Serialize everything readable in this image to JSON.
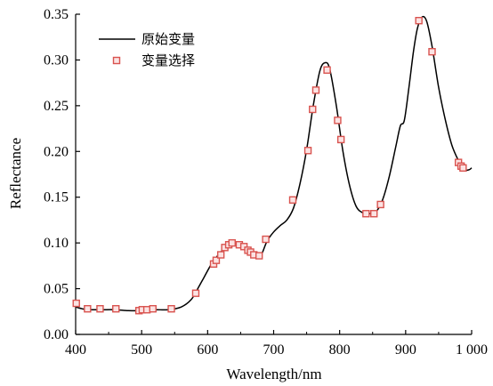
{
  "chart_data": {
    "type": "line",
    "xlabel": "Wavelength/nm",
    "ylabel": "Reflectance",
    "xlim": [
      400,
      1000
    ],
    "ylim": [
      0,
      0.35
    ],
    "x_ticks": [
      400,
      500,
      600,
      700,
      800,
      900,
      1000
    ],
    "x_tick_labels": [
      "400",
      "500",
      "600",
      "700",
      "800",
      "900",
      "1 000"
    ],
    "y_ticks": [
      0,
      0.05,
      0.1,
      0.15,
      0.2,
      0.25,
      0.3,
      0.35
    ],
    "y_tick_labels": [
      "0.00",
      "0.05",
      "0.10",
      "0.15",
      "0.20",
      "0.25",
      "0.30",
      "0.35"
    ],
    "grid": false,
    "legend_position": "top-left",
    "series": [
      {
        "name": "原始变量",
        "style": "line",
        "color": "#000000",
        "points": [
          [
            400,
            0.03
          ],
          [
            410,
            0.028
          ],
          [
            420,
            0.027
          ],
          [
            440,
            0.027
          ],
          [
            460,
            0.027
          ],
          [
            480,
            0.026
          ],
          [
            500,
            0.026
          ],
          [
            520,
            0.027
          ],
          [
            540,
            0.027
          ],
          [
            560,
            0.03
          ],
          [
            575,
            0.038
          ],
          [
            585,
            0.05
          ],
          [
            595,
            0.063
          ],
          [
            605,
            0.076
          ],
          [
            615,
            0.086
          ],
          [
            625,
            0.094
          ],
          [
            635,
            0.099
          ],
          [
            645,
            0.099
          ],
          [
            655,
            0.095
          ],
          [
            665,
            0.089
          ],
          [
            675,
            0.084
          ],
          [
            682,
            0.088
          ],
          [
            690,
            0.102
          ],
          [
            700,
            0.112
          ],
          [
            710,
            0.119
          ],
          [
            720,
            0.125
          ],
          [
            730,
            0.138
          ],
          [
            740,
            0.165
          ],
          [
            750,
            0.202
          ],
          [
            760,
            0.25
          ],
          [
            770,
            0.288
          ],
          [
            778,
            0.297
          ],
          [
            785,
            0.29
          ],
          [
            795,
            0.25
          ],
          [
            805,
            0.2
          ],
          [
            815,
            0.163
          ],
          [
            825,
            0.14
          ],
          [
            835,
            0.133
          ],
          [
            845,
            0.132
          ],
          [
            855,
            0.134
          ],
          [
            865,
            0.147
          ],
          [
            875,
            0.172
          ],
          [
            885,
            0.205
          ],
          [
            892,
            0.228
          ],
          [
            898,
            0.234
          ],
          [
            905,
            0.27
          ],
          [
            912,
            0.31
          ],
          [
            918,
            0.335
          ],
          [
            925,
            0.347
          ],
          [
            932,
            0.342
          ],
          [
            940,
            0.315
          ],
          [
            950,
            0.27
          ],
          [
            960,
            0.235
          ],
          [
            970,
            0.207
          ],
          [
            980,
            0.19
          ],
          [
            988,
            0.18
          ],
          [
            996,
            0.18
          ],
          [
            1000,
            0.182
          ]
        ]
      },
      {
        "name": "变量选择",
        "style": "marker",
        "color": "#d9534f",
        "points": [
          [
            401,
            0.034
          ],
          [
            418,
            0.028
          ],
          [
            437,
            0.028
          ],
          [
            461,
            0.028
          ],
          [
            496,
            0.026
          ],
          [
            501,
            0.027
          ],
          [
            508,
            0.027
          ],
          [
            517,
            0.028
          ],
          [
            545,
            0.028
          ],
          [
            582,
            0.045
          ],
          [
            609,
            0.077
          ],
          [
            613,
            0.081
          ],
          [
            620,
            0.087
          ],
          [
            626,
            0.095
          ],
          [
            632,
            0.098
          ],
          [
            637,
            0.1
          ],
          [
            648,
            0.098
          ],
          [
            655,
            0.096
          ],
          [
            661,
            0.092
          ],
          [
            665,
            0.09
          ],
          [
            670,
            0.087
          ],
          [
            678,
            0.086
          ],
          [
            688,
            0.104
          ],
          [
            729,
            0.147
          ],
          [
            752,
            0.201
          ],
          [
            759,
            0.246
          ],
          [
            764,
            0.267
          ],
          [
            781,
            0.289
          ],
          [
            797,
            0.234
          ],
          [
            802,
            0.213
          ],
          [
            840,
            0.132
          ],
          [
            852,
            0.132
          ],
          [
            862,
            0.142
          ],
          [
            920,
            0.343
          ],
          [
            940,
            0.309
          ],
          [
            980,
            0.188
          ],
          [
            984,
            0.184
          ],
          [
            987,
            0.182
          ]
        ]
      }
    ]
  }
}
